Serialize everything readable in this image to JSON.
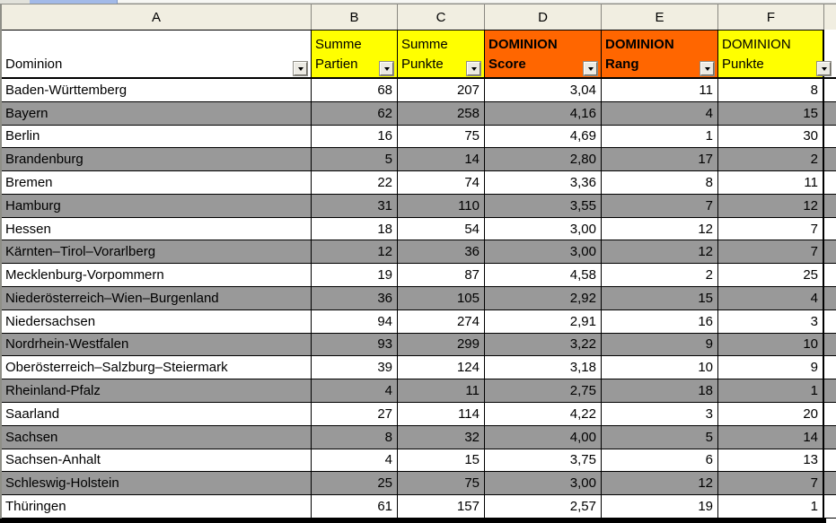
{
  "spreadsheet": {
    "colors": {
      "header_yellow": "#FFFF00",
      "header_orange": "#FF6600",
      "row_shaded": "#999999",
      "row_plain": "#FFFFFF",
      "column_strip_bg": "#F1EEE1"
    },
    "headers": [
      {
        "letter": "A",
        "lines": [
          "Dominion"
        ],
        "bg": "#FFFFFF",
        "bold": false
      },
      {
        "letter": "B",
        "lines": [
          "Summe",
          "Partien"
        ],
        "bg": "#FFFF00",
        "bold": false
      },
      {
        "letter": "C",
        "lines": [
          "Summe",
          "Punkte"
        ],
        "bg": "#FFFF00",
        "bold": false
      },
      {
        "letter": "D",
        "lines": [
          "DOMINION",
          "Score"
        ],
        "bg": "#FF6600",
        "bold": true
      },
      {
        "letter": "E",
        "lines": [
          "DOMINION",
          "Rang"
        ],
        "bg": "#FF6600",
        "bold": true
      },
      {
        "letter": "F",
        "lines": [
          "DOMINION",
          "Punkte"
        ],
        "bg": "#FFFF00",
        "bold": false
      }
    ],
    "rows": [
      {
        "name": "Baden-Württemberg",
        "values": [
          "68",
          "207",
          "3,04",
          "11",
          "8"
        ],
        "shaded": false
      },
      {
        "name": "Bayern",
        "values": [
          "62",
          "258",
          "4,16",
          "4",
          "15"
        ],
        "shaded": true
      },
      {
        "name": "Berlin",
        "values": [
          "16",
          "75",
          "4,69",
          "1",
          "30"
        ],
        "shaded": false
      },
      {
        "name": "Brandenburg",
        "values": [
          "5",
          "14",
          "2,80",
          "17",
          "2"
        ],
        "shaded": true
      },
      {
        "name": "Bremen",
        "values": [
          "22",
          "74",
          "3,36",
          "8",
          "11"
        ],
        "shaded": false
      },
      {
        "name": "Hamburg",
        "values": [
          "31",
          "110",
          "3,55",
          "7",
          "12"
        ],
        "shaded": true
      },
      {
        "name": "Hessen",
        "values": [
          "18",
          "54",
          "3,00",
          "12",
          "7"
        ],
        "shaded": false
      },
      {
        "name": "Kärnten–Tirol–Vorarlberg",
        "values": [
          "12",
          "36",
          "3,00",
          "12",
          "7"
        ],
        "shaded": true
      },
      {
        "name": "Mecklenburg-Vorpommern",
        "values": [
          "19",
          "87",
          "4,58",
          "2",
          "25"
        ],
        "shaded": false
      },
      {
        "name": "Niederösterreich–Wien–Burgenland",
        "values": [
          "36",
          "105",
          "2,92",
          "15",
          "4"
        ],
        "shaded": true
      },
      {
        "name": "Niedersachsen",
        "values": [
          "94",
          "274",
          "2,91",
          "16",
          "3"
        ],
        "shaded": false
      },
      {
        "name": "Nordrhein-Westfalen",
        "values": [
          "93",
          "299",
          "3,22",
          "9",
          "10"
        ],
        "shaded": true
      },
      {
        "name": "Oberösterreich–Salzburg–Steiermark",
        "values": [
          "39",
          "124",
          "3,18",
          "10",
          "9"
        ],
        "shaded": false
      },
      {
        "name": "Rheinland-Pfalz",
        "values": [
          "4",
          "11",
          "2,75",
          "18",
          "1"
        ],
        "shaded": true
      },
      {
        "name": "Saarland",
        "values": [
          "27",
          "114",
          "4,22",
          "3",
          "20"
        ],
        "shaded": false
      },
      {
        "name": "Sachsen",
        "values": [
          "8",
          "32",
          "4,00",
          "5",
          "14"
        ],
        "shaded": true
      },
      {
        "name": "Sachsen-Anhalt",
        "values": [
          "4",
          "15",
          "3,75",
          "6",
          "13"
        ],
        "shaded": false
      },
      {
        "name": "Schleswig-Holstein",
        "values": [
          "25",
          "75",
          "3,00",
          "12",
          "7"
        ],
        "shaded": true
      },
      {
        "name": "Thüringen",
        "values": [
          "61",
          "157",
          "2,57",
          "19",
          "1"
        ],
        "shaded": false
      }
    ]
  }
}
